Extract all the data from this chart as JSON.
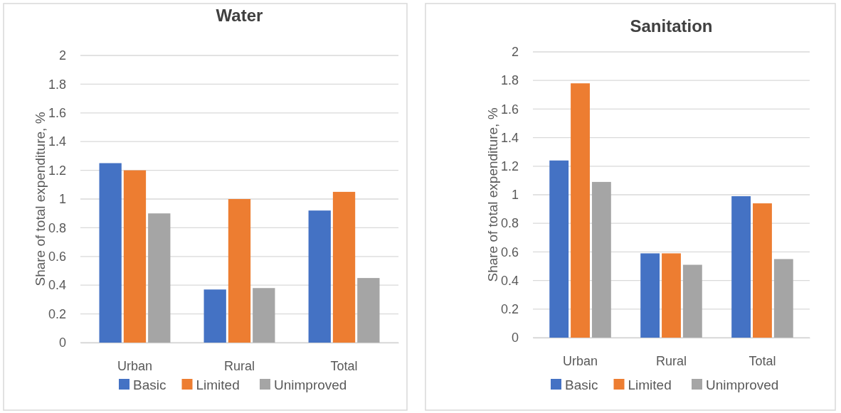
{
  "chart_data": [
    {
      "type": "bar",
      "title": "Water",
      "ylabel": "Share of total expenditure, %",
      "categories": [
        "Urban",
        "Rural",
        "Total"
      ],
      "series": [
        {
          "name": "Basic",
          "color": "#4472c4",
          "values": [
            1.25,
            0.37,
            0.92
          ]
        },
        {
          "name": "Limited",
          "color": "#ed7d31",
          "values": [
            1.2,
            1.0,
            1.05
          ]
        },
        {
          "name": "Unimproved",
          "color": "#a5a5a5",
          "values": [
            0.9,
            0.38,
            0.45
          ]
        }
      ],
      "ylim": [
        0,
        2
      ],
      "yticks": [
        0,
        0.2,
        0.4,
        0.6,
        0.8,
        1,
        1.2,
        1.4,
        1.6,
        1.8,
        2
      ],
      "grid": "y",
      "legend": "bottom"
    },
    {
      "type": "bar",
      "title": "Sanitation",
      "ylabel": "Share of total expenditure, %",
      "categories": [
        "Urban",
        "Rural",
        "Total"
      ],
      "series": [
        {
          "name": "Basic",
          "color": "#4472c4",
          "values": [
            1.24,
            0.59,
            0.99
          ]
        },
        {
          "name": "Limited",
          "color": "#ed7d31",
          "values": [
            1.78,
            0.59,
            0.94
          ]
        },
        {
          "name": "Unimproved",
          "color": "#a5a5a5",
          "values": [
            1.09,
            0.51,
            0.55
          ]
        }
      ],
      "ylim": [
        0,
        2
      ],
      "yticks": [
        0,
        0.2,
        0.4,
        0.6,
        0.8,
        1,
        1.2,
        1.4,
        1.6,
        1.8,
        2
      ],
      "grid": "y",
      "legend": "bottom"
    }
  ]
}
